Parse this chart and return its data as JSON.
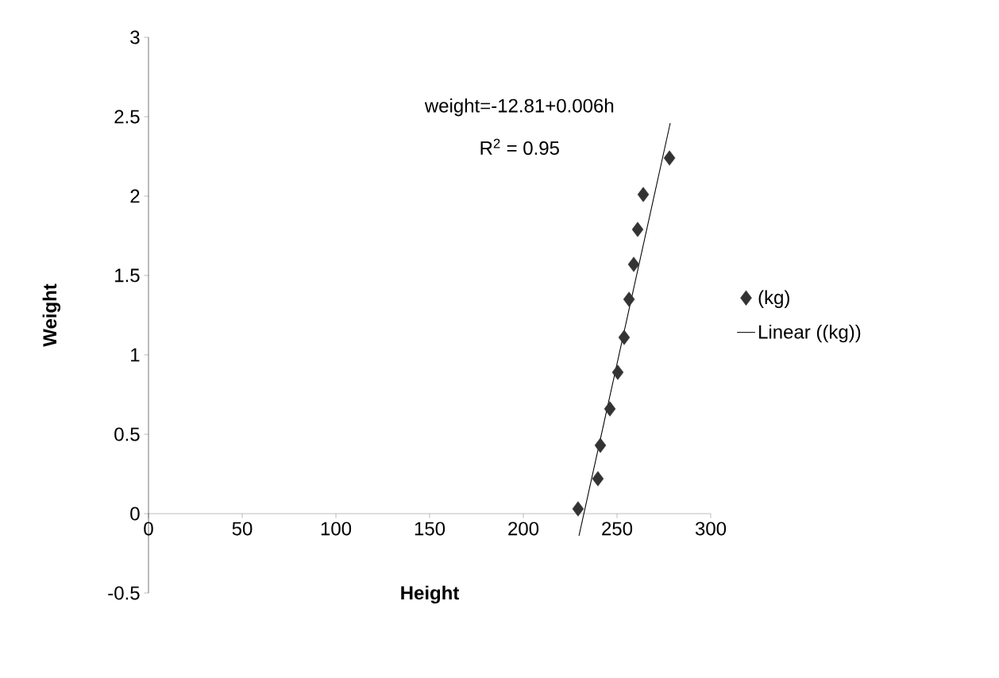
{
  "chart_data": {
    "type": "scatter",
    "xlabel": "Height",
    "ylabel": "Weight",
    "annotations": [
      "weight=-12.81+0.006h",
      "R$^{2}$ = 0.95"
    ],
    "xlim": [
      0,
      300
    ],
    "xticks": [
      0,
      50,
      100,
      150,
      200,
      250,
      300
    ],
    "ylim": [
      -0.5,
      3
    ],
    "yticks": [
      -0.5,
      0,
      0.5,
      1,
      1.5,
      2,
      2.5,
      3
    ],
    "legend": "right",
    "grid": false,
    "series": [
      {
        "name": "(kg)",
        "color": "#333333",
        "marker": "diamond",
        "x": [
          229.2,
          239.8,
          241.1,
          246.2,
          250.4,
          253.8,
          256.4,
          258.9,
          261,
          264,
          278
        ],
        "values": [
          0.03,
          0.22,
          0.43,
          0.66,
          0.89,
          1.11,
          1.35,
          1.57,
          1.79,
          2.01,
          2.24
        ]
      },
      {
        "name": "Linear ((kg))",
        "type": "line",
        "color": "#000000",
        "x": [
          229.7,
          278.4
        ],
        "values": [
          -0.14,
          2.46
        ]
      }
    ]
  }
}
